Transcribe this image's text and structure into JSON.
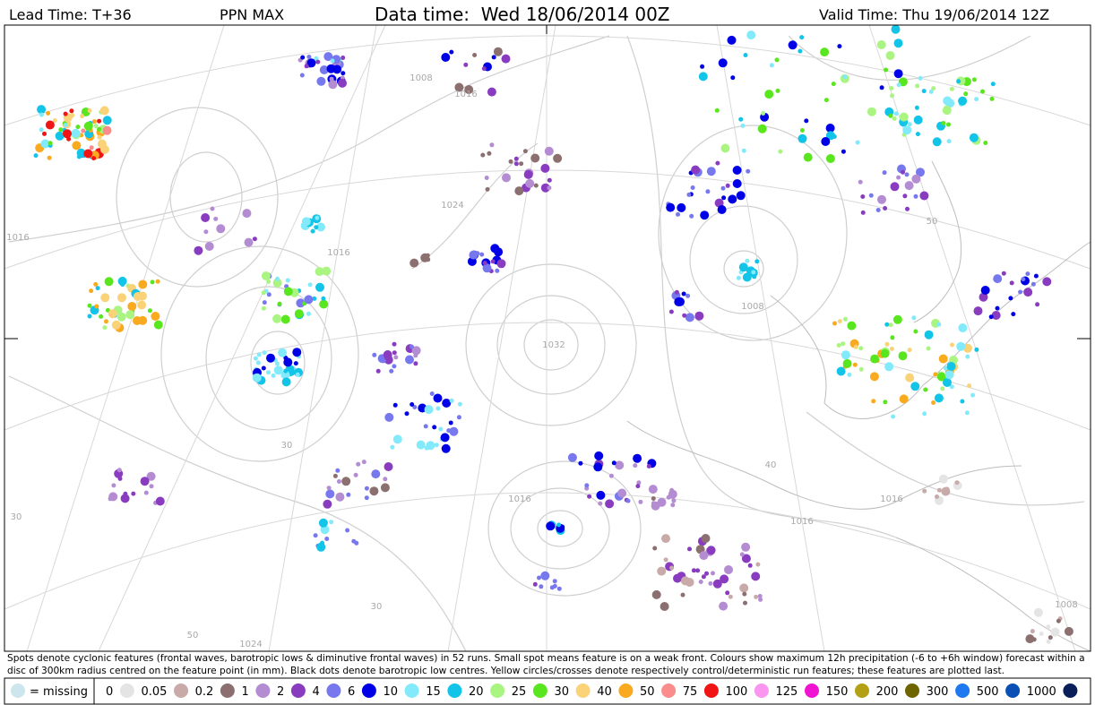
{
  "header": {
    "lead_time": "Lead Time: T+36",
    "field": "PPN MAX",
    "data_time": "Data time:  Wed 18/06/2014 00Z",
    "valid_time": "Valid Time: Thu 19/06/2014 12Z"
  },
  "map": {
    "isobar_labels": [
      "1016",
      "1008",
      "1024",
      "1016",
      "1032",
      "1016",
      "1016",
      "1008",
      "1016",
      "1024",
      "1016",
      "1008"
    ],
    "graticule_labels": [
      "30",
      "50",
      "40",
      "30",
      "50",
      "30"
    ]
  },
  "caption": "Spots denote cyclonic features (frontal waves, barotropic lows & diminutive frontal waves) in 52 runs. Small spot means feature is on a weak front. Colours show maximum 12h precipitation (-6 to +6h window) forecast within a disc of 300km radius centred on the feature point (in mm). Black dots denote barotropic low centres. Yellow circles/crosses denote respectively control/deterministic run features; these features are plotted last.",
  "legend": {
    "missing": "= missing",
    "missing_color": "#cde6ee",
    "items": [
      {
        "label": "0",
        "color": "#e4e4e4"
      },
      {
        "label": "0.05",
        "color": "#c8aaa8"
      },
      {
        "label": "0.2",
        "color": "#8c7070"
      },
      {
        "label": "1",
        "color": "#b48cd2"
      },
      {
        "label": "2",
        "color": "#8a3cc0"
      },
      {
        "label": "4",
        "color": "#7878ee"
      },
      {
        "label": "6",
        "color": "#0000e6"
      },
      {
        "label": "10",
        "color": "#82eafa"
      },
      {
        "label": "15",
        "color": "#12c4e8"
      },
      {
        "label": "20",
        "color": "#aaf582"
      },
      {
        "label": "25",
        "color": "#5ae61e"
      },
      {
        "label": "30",
        "color": "#fad278"
      },
      {
        "label": "40",
        "color": "#faaa1e"
      },
      {
        "label": "50",
        "color": "#fa8c8c"
      },
      {
        "label": "75",
        "color": "#f01414"
      },
      {
        "label": "100",
        "color": "#fa96f0"
      },
      {
        "label": "125",
        "color": "#f014d2"
      },
      {
        "label": "150",
        "color": "#b4a014"
      },
      {
        "label": "200",
        "color": "#6e6400"
      },
      {
        "label": "300",
        "color": "#1e78f0"
      },
      {
        "label": "500",
        "color": "#0a50b4"
      },
      {
        "label": "1000",
        "color": "#0a1e5a"
      }
    ]
  }
}
